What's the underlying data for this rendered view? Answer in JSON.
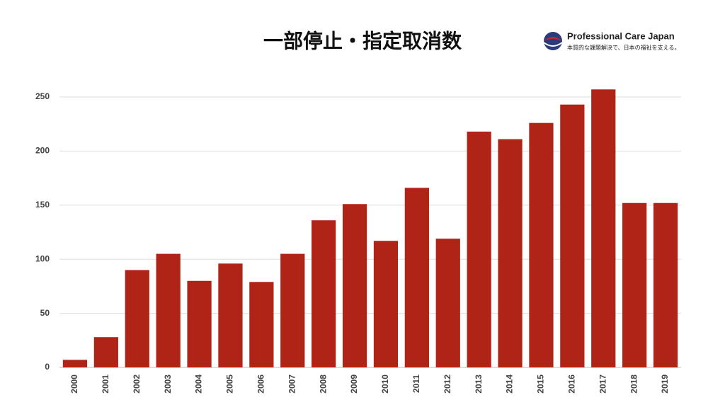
{
  "chart_data": {
    "type": "bar",
    "title": "一部停止・指定取消数",
    "logo": {
      "name": "Professional Care Japan",
      "tagline": "本質的な課題解決で、日本の福祉を支える。"
    },
    "categories": [
      "2000",
      "2001",
      "2002",
      "2003",
      "2004",
      "2005",
      "2006",
      "2007",
      "2008",
      "2009",
      "2010",
      "2011",
      "2012",
      "2013",
      "2014",
      "2015",
      "2016",
      "2017",
      "2018",
      "2019"
    ],
    "values": [
      7,
      28,
      90,
      105,
      80,
      96,
      79,
      105,
      136,
      151,
      117,
      166,
      119,
      218,
      211,
      226,
      243,
      257,
      152,
      152
    ],
    "color": "#b02418",
    "ylim": [
      0,
      260
    ],
    "yticks": [
      0,
      50,
      100,
      150,
      200,
      250
    ],
    "grid": true
  }
}
